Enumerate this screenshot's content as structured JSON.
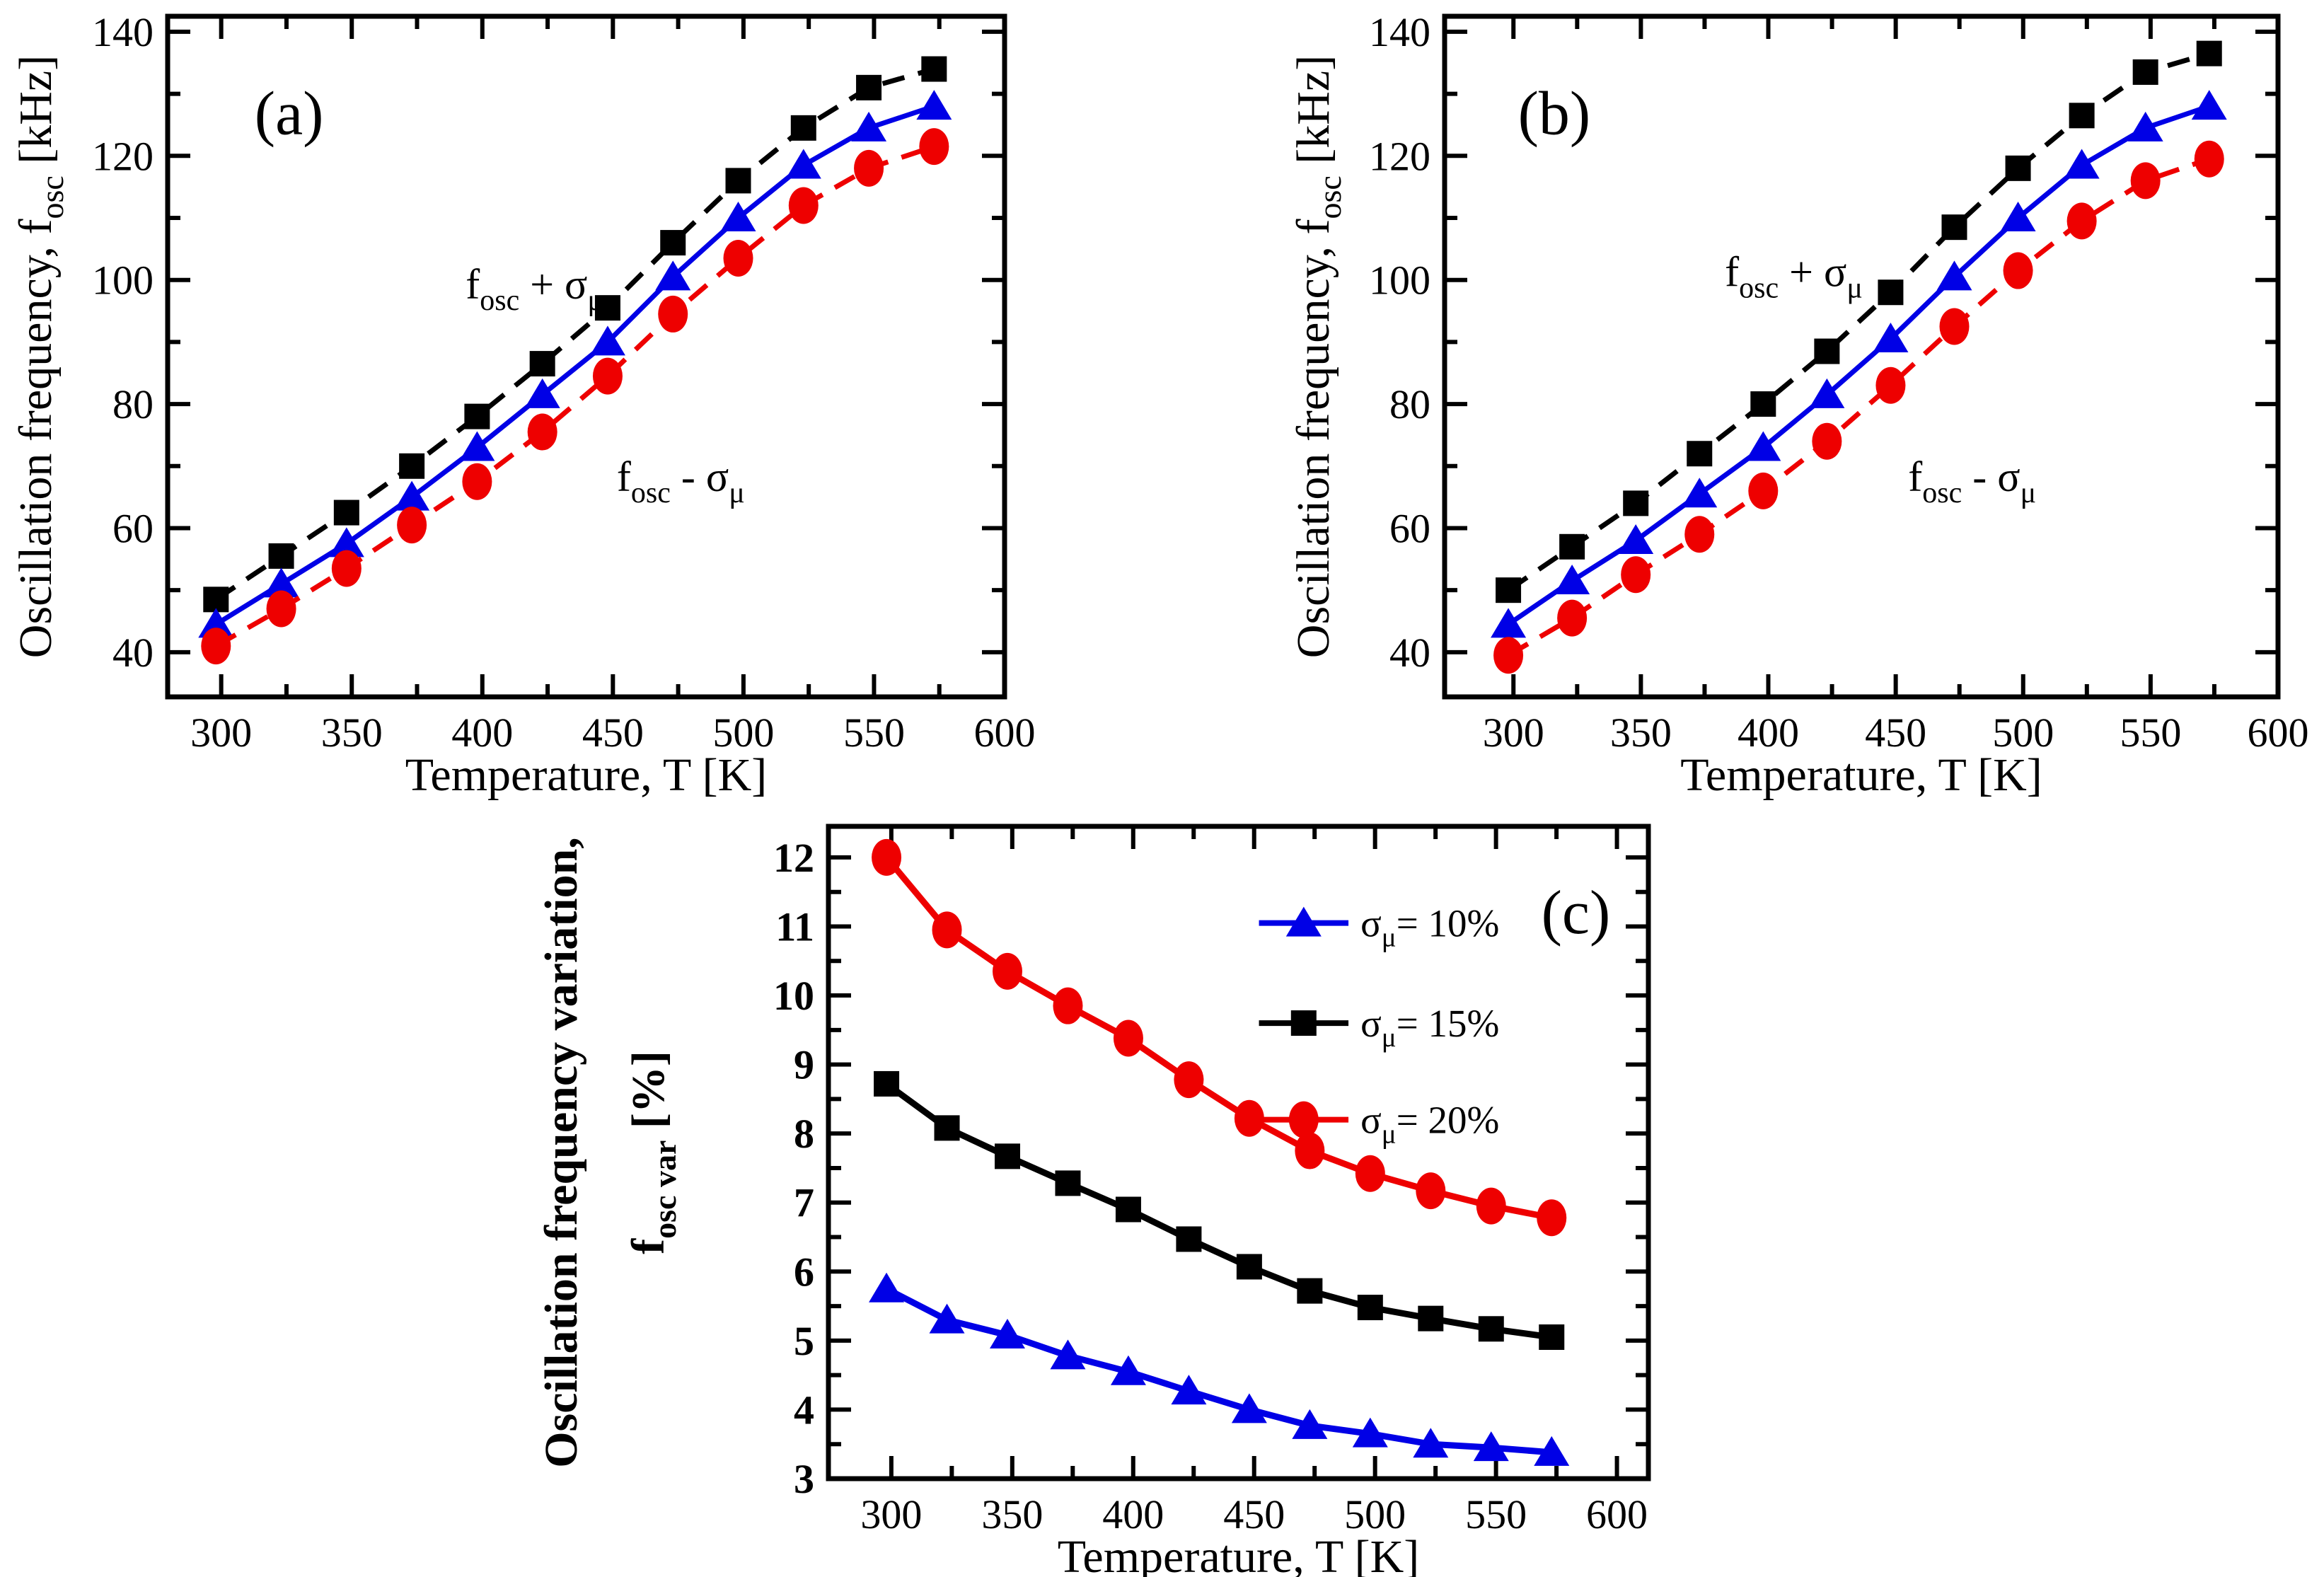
{
  "figure": {
    "background": "#ffffff"
  },
  "palette": {
    "black": "#000000",
    "blue": "#0000e6",
    "red": "#ee0000"
  },
  "chart_data": [
    {
      "id": "a",
      "type": "line",
      "panel_label": "(a)",
      "panel_label_pos": {
        "x": 326,
        "y": 123.5
      },
      "xlabel": "Temperature, T [K]",
      "ylabel_lines": [
        "Oscillation frequency, f_{osc} [kHz]"
      ],
      "xlim": [
        279.5,
        600
      ],
      "ylim": [
        32.8,
        142.5
      ],
      "x_ticks": [
        300,
        350,
        400,
        450,
        500,
        550,
        600
      ],
      "x_minor_ticks": [
        325,
        375,
        425,
        475,
        525,
        575
      ],
      "y_ticks": [
        40,
        60,
        80,
        100,
        120,
        140
      ],
      "y_minor_ticks": [
        50,
        70,
        90,
        110,
        130
      ],
      "grid": false,
      "x": [
        298,
        323,
        348,
        373,
        398,
        423,
        448,
        473,
        498,
        523,
        548,
        573
      ],
      "series": [
        {
          "name": "f_{osc} + σ_{μ}",
          "color": "black",
          "line": "dashed",
          "marker": "square",
          "values": [
            48.5,
            55.5,
            62.5,
            70.0,
            78.0,
            86.5,
            95.5,
            106.0,
            116.0,
            124.5,
            131.0,
            134.0
          ]
        },
        {
          "name": "f_{osc}",
          "color": "blue",
          "line": "solid",
          "marker": "triangle",
          "values": [
            44.5,
            51.0,
            57.5,
            65.0,
            73.0,
            81.5,
            90.0,
            100.5,
            110.0,
            118.5,
            124.5,
            128.0
          ]
        },
        {
          "name": "f_{osc} - σ_{μ}",
          "color": "red",
          "line": "dashed",
          "marker": "circle",
          "values": [
            41.0,
            47.0,
            53.5,
            60.5,
            67.5,
            75.5,
            84.5,
            94.5,
            103.5,
            112.0,
            118.0,
            121.5
          ]
        }
      ],
      "annotations": [
        {
          "text": "f_{osc} + σ_{μ}",
          "x": 420,
          "y": 97
        },
        {
          "text": "f_{osc} - σ_{μ}",
          "x": 476,
          "y": 66
        }
      ],
      "legend": null
    },
    {
      "id": "b",
      "type": "line",
      "panel_label": "(b)",
      "panel_label_pos": {
        "x": 316,
        "y": 123.5
      },
      "xlabel": "Temperature, T [K]",
      "ylabel_lines": [
        "Oscillation frequency, f_{osc} [kHz]"
      ],
      "xlim": [
        273,
        600
      ],
      "ylim": [
        32.8,
        142.5
      ],
      "x_ticks": [
        300,
        350,
        400,
        450,
        500,
        550,
        600
      ],
      "x_minor_ticks": [
        325,
        375,
        425,
        475,
        525,
        575
      ],
      "y_ticks": [
        40,
        60,
        80,
        100,
        120,
        140
      ],
      "y_minor_ticks": [
        50,
        70,
        90,
        110,
        130
      ],
      "grid": false,
      "x": [
        298,
        323,
        348,
        373,
        398,
        423,
        448,
        473,
        498,
        523,
        548,
        573
      ],
      "series": [
        {
          "name": "f_{osc} + σ_{μ}",
          "color": "black",
          "line": "dashed",
          "marker": "square",
          "values": [
            50.0,
            57.0,
            64.0,
            72.0,
            80.0,
            88.5,
            98.0,
            108.5,
            118.0,
            126.5,
            133.5,
            136.5
          ]
        },
        {
          "name": "f_{osc}",
          "color": "blue",
          "line": "solid",
          "marker": "triangle",
          "values": [
            44.5,
            51.5,
            58.0,
            65.5,
            73.0,
            81.5,
            90.5,
            100.5,
            110.0,
            118.5,
            124.5,
            128.0
          ]
        },
        {
          "name": "f_{osc} - σ_{μ}",
          "color": "red",
          "line": "dashed",
          "marker": "circle",
          "values": [
            39.5,
            45.5,
            52.5,
            59.0,
            66.0,
            74.0,
            83.0,
            92.5,
            101.5,
            109.5,
            116.0,
            119.5
          ]
        }
      ],
      "annotations": [
        {
          "text": "f_{osc} + σ_{μ}",
          "x": 410,
          "y": 99
        },
        {
          "text": "f_{osc} - σ_{μ}",
          "x": 480,
          "y": 66
        }
      ],
      "legend": null
    },
    {
      "id": "c",
      "type": "line",
      "panel_label": "(c)",
      "panel_label_pos": {
        "x": 583,
        "y": 10.9
      },
      "xlabel": "Temperature, T [K]",
      "ylabel_lines": [
        "Oscillation frequency variation,",
        "f_{osc var} [%]"
      ],
      "bold_y": true,
      "xlim": [
        274,
        613
      ],
      "ylim": [
        3,
        12.45
      ],
      "x_ticks": [
        300,
        350,
        400,
        450,
        500,
        550,
        600
      ],
      "x_minor_ticks": [
        325,
        375,
        425,
        475,
        525,
        575
      ],
      "y_ticks": [
        3,
        4,
        5,
        6,
        7,
        8,
        9,
        10,
        11,
        12
      ],
      "y_minor_ticks": [
        3.5,
        4.5,
        5.5,
        6.5,
        7.5,
        8.5,
        9.5,
        10.5,
        11.5
      ],
      "grid": false,
      "x": [
        298,
        323,
        348,
        373,
        398,
        423,
        448,
        473,
        498,
        523,
        548,
        573
      ],
      "series": [
        {
          "name": "σ_{μ}= 10%",
          "color": "blue",
          "line": "solid",
          "marker": "triangle",
          "values": [
            5.75,
            5.3,
            5.08,
            4.78,
            4.55,
            4.27,
            4.0,
            3.77,
            3.65,
            3.5,
            3.45,
            3.38
          ]
        },
        {
          "name": "σ_{μ}= 15%",
          "color": "black",
          "line": "solid",
          "marker": "square",
          "values": [
            8.72,
            8.08,
            7.67,
            7.28,
            6.9,
            6.47,
            6.07,
            5.72,
            5.48,
            5.32,
            5.17,
            5.05
          ]
        },
        {
          "name": "σ_{μ}= 20%",
          "color": "red",
          "line": "solid",
          "marker": "circle",
          "values": [
            12.0,
            10.95,
            10.35,
            9.85,
            9.38,
            8.78,
            8.22,
            7.75,
            7.42,
            7.17,
            6.95,
            6.78
          ]
        }
      ],
      "annotations": [],
      "legend": {
        "position": "top-right-inside",
        "line_x": [
          452,
          489
        ],
        "label_x": 494,
        "item_y": [
          11.05,
          9.6,
          8.2
        ],
        "items": [
          {
            "label": "σ_{μ}= 10%",
            "series": 0
          },
          {
            "label": "σ_{μ}= 15%",
            "series": 1
          },
          {
            "label": "σ_{μ}= 20%",
            "series": 2
          }
        ]
      }
    }
  ]
}
